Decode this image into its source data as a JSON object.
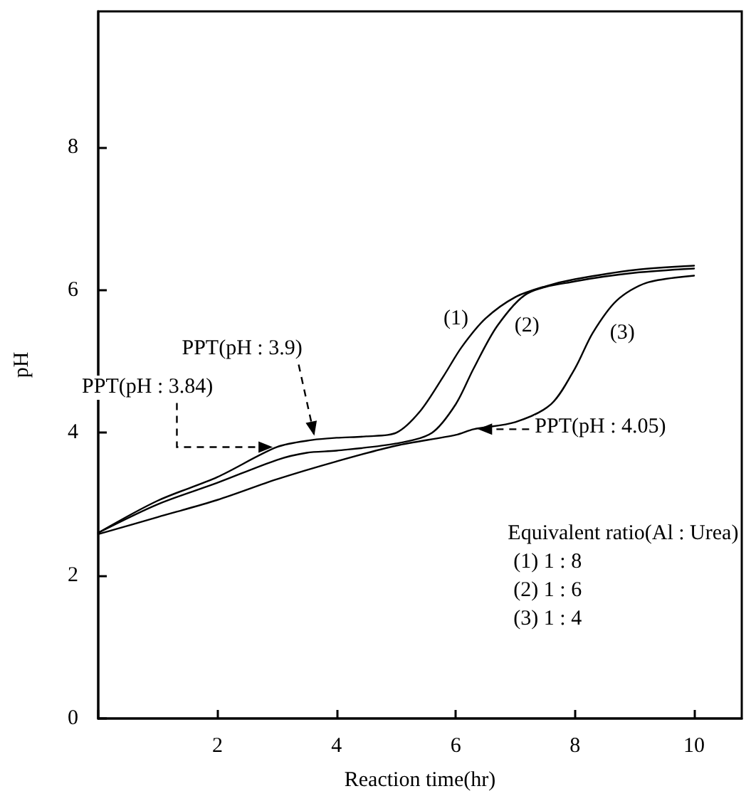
{
  "chart_data": {
    "type": "line",
    "xlabel": "Reaction time(hr)",
    "ylabel": "pH",
    "xlim": [
      0,
      10.8
    ],
    "ylim": [
      0,
      9.9
    ],
    "xticks": [
      {
        "value": 0,
        "label": null
      },
      2,
      4,
      6,
      8,
      10
    ],
    "yticks": [
      0,
      2,
      4,
      6,
      8
    ],
    "grid": false,
    "marker": "none",
    "line_style": "solid",
    "series": [
      {
        "name": "(1)",
        "color": "#000000",
        "x": [
          0,
          1,
          2,
          3,
          3.6,
          4,
          4.5,
          5,
          5.4,
          5.8,
          6.1,
          6.5,
          7,
          7.5,
          8,
          9,
          10
        ],
        "values": [
          2.6,
          3.05,
          3.38,
          3.8,
          3.9,
          3.93,
          3.95,
          4.0,
          4.3,
          4.8,
          5.2,
          5.6,
          5.9,
          6.05,
          6.15,
          6.28,
          6.34
        ]
      },
      {
        "name": "(2)",
        "color": "#000000",
        "x": [
          0,
          1,
          2,
          3,
          3.5,
          4,
          5,
          5.6,
          6,
          6.3,
          6.7,
          7.2,
          8,
          9,
          10
        ],
        "values": [
          2.6,
          3.0,
          3.3,
          3.62,
          3.72,
          3.75,
          3.85,
          4.0,
          4.4,
          4.9,
          5.5,
          5.95,
          6.12,
          6.24,
          6.3
        ]
      },
      {
        "name": "(3)",
        "color": "#000000",
        "x": [
          0,
          1,
          2,
          3,
          4,
          5,
          6,
          6.3,
          7,
          7.6,
          8,
          8.3,
          8.7,
          9.2,
          10
        ],
        "values": [
          2.58,
          2.82,
          3.06,
          3.35,
          3.6,
          3.82,
          3.97,
          4.05,
          4.15,
          4.4,
          4.9,
          5.4,
          5.85,
          6.1,
          6.2
        ]
      }
    ],
    "annotations": [
      {
        "text": "PPT(pH : 3.84)",
        "x": 3.0,
        "y": 3.8
      },
      {
        "text": "PPT(pH : 3.9)",
        "x": 3.65,
        "y": 3.9
      },
      {
        "text": "PPT(pH : 4.05)",
        "x": 6.3,
        "y": 4.05
      },
      "Equivalent ratio(Al : Urea)",
      "(1) 1 : 8",
      "(2) 1 : 6",
      "(3) 1 : 4"
    ]
  }
}
